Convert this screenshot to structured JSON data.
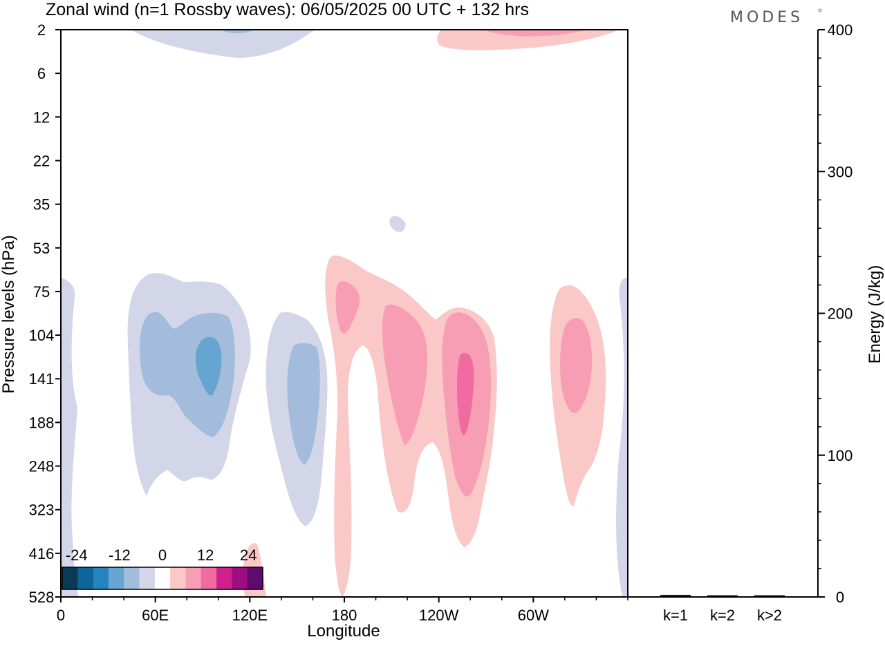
{
  "title": "Zonal wind (n=1 Rossby waves):  06/05/2025  00 UTC  + 132 hrs",
  "logo": "MODES",
  "chart_data": [
    {
      "type": "heatmap",
      "title": "Zonal wind (n=1 Rossby waves):  06/05/2025  00 UTC  + 132 hrs",
      "xlabel": "Longitude",
      "ylabel": "Pressure levels (hPa)",
      "x_ticks": [
        "0",
        "60E",
        "120E",
        "180",
        "120W",
        "60W"
      ],
      "x_tick_lon": [
        0,
        60,
        120,
        180,
        240,
        300
      ],
      "xlim": [
        0,
        360
      ],
      "y_ticks": [
        "2",
        "6",
        "12",
        "22",
        "35",
        "53",
        "75",
        "104",
        "141",
        "188",
        "248",
        "323",
        "416",
        "528"
      ],
      "grid": false,
      "colorbar": {
        "tick_labels": [
          "-24",
          "-12",
          "0",
          "12",
          "24"
        ],
        "tick_values": [
          -24,
          -12,
          0,
          12,
          24
        ],
        "levels": [
          -28,
          -24,
          -20,
          -16,
          -12,
          -8,
          -4,
          4,
          8,
          12,
          16,
          20,
          24,
          28
        ],
        "colors": [
          "#0b3a56",
          "#0f6499",
          "#2583bd",
          "#66a5cf",
          "#a3bcdc",
          "#d3d6e8",
          "#ffffff",
          "#fac8c6",
          "#f89eb4",
          "#f06ca0",
          "#d0208c",
          "#9c0d80",
          "#5e0a6f"
        ],
        "placement": "bottom-left"
      },
      "features": [
        {
          "lon": 110,
          "level": "2",
          "sign": "negative",
          "peak": -8
        },
        {
          "lon": 285,
          "level": "2",
          "sign": "positive",
          "peak": 8
        },
        {
          "lon": 205,
          "level": "35",
          "sign": "negative",
          "peak": -4
        },
        {
          "lon": 0,
          "level": "188",
          "sign": "negative",
          "peak": -4
        },
        {
          "lon": 95,
          "level": "141",
          "sign": "negative",
          "peak": -16
        },
        {
          "lon": 153,
          "level": "188",
          "sign": "negative",
          "peak": -12
        },
        {
          "lon": 183,
          "level": "104",
          "sign": "positive",
          "peak": 8
        },
        {
          "lon": 215,
          "level": "141",
          "sign": "positive",
          "peak": 8
        },
        {
          "lon": 255,
          "level": "141",
          "sign": "positive",
          "peak": 12
        },
        {
          "lon": 323,
          "level": "141",
          "sign": "positive",
          "peak": 8
        },
        {
          "lon": 120,
          "level": "528",
          "sign": "positive",
          "peak": 4
        },
        {
          "lon": 360,
          "level": "188",
          "sign": "negative",
          "peak": -4
        }
      ]
    },
    {
      "type": "bar",
      "categories": [
        "k=1",
        "k=2",
        "k>2"
      ],
      "values": [
        1.0,
        0.3,
        0.4
      ],
      "xlabel": "",
      "ylabel": "Energy (J/kg)",
      "ylim": [
        0,
        400
      ],
      "y_ticks": [
        "0",
        "100",
        "200",
        "300",
        "400"
      ],
      "y_tick_values": [
        0,
        100,
        200,
        300,
        400
      ],
      "bar_color": "#1a1a2e"
    }
  ]
}
